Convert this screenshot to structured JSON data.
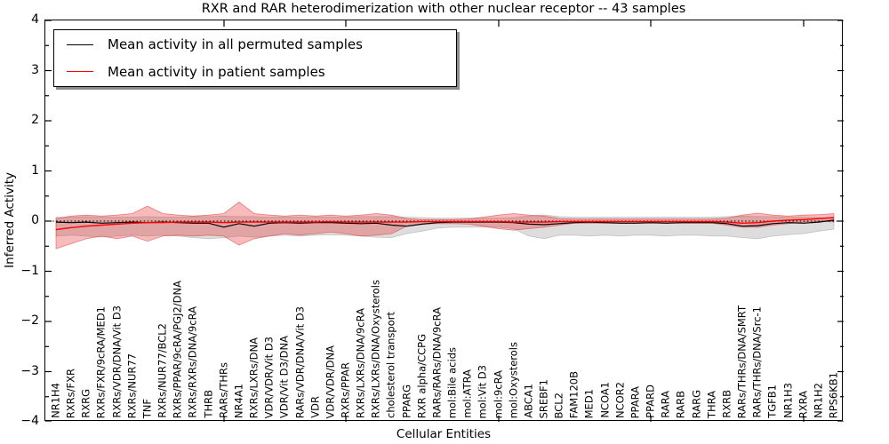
{
  "title": "RXR and RAR heterodimerization with other nuclear receptor -- 43 samples",
  "axes": {
    "ylabel": "Inferred Activity",
    "xlabel": "Cellular Entities",
    "yticks": [
      "4",
      "3",
      "2",
      "1",
      "0",
      "−1",
      "−2",
      "−3",
      "−4"
    ]
  },
  "legend": {
    "items": [
      {
        "label": "Mean activity in all permuted samples",
        "color": "#000000"
      },
      {
        "label": "Mean activity in patient samples",
        "color": "#ff0000"
      }
    ]
  },
  "chart_data": {
    "type": "line",
    "title": "RXR and RAR heterodimerization with other nuclear receptor -- 43 samples",
    "xlabel": "Cellular Entities",
    "ylabel": "Inferred Activity",
    "ylim": [
      -4,
      4
    ],
    "grid": false,
    "legend_position": "upper left",
    "zero_reference_line": {
      "value": 0,
      "style": "dotted",
      "color": "#000000"
    },
    "categories": [
      "NR1H4",
      "RXRs/FXR",
      "RXRG",
      "RXRs/FXR/9cRA/MED1",
      "RXRs/VDR/DNA/Vit D3",
      "RXRs/NUR77",
      "TNF",
      "RXRs/NUR77/BCL2",
      "RXRs/PPAR/9cRA/PGJ2/DNA",
      "RXRs/RXRs/DNA/9cRA",
      "THRB",
      "RARs/THRs",
      "NR4A1",
      "RXRs/LXRs/DNA",
      "VDR/VDR/Vit D3",
      "VDR/Vit D3/DNA",
      "RARs/VDR/DNA/Vit D3",
      "VDR",
      "VDR/VDR/DNA",
      "RXRs/PPAR",
      "RXRs/LXRs/DNA/9cRA",
      "RXRs/LXRs/DNA/Oxysterols",
      "cholesterol transport",
      "PPARG",
      "RXR alpha/CCPG",
      "RARs/RARs/DNA/9cRA",
      "mol:Bile acids",
      "mol:ATRA",
      "mol:Vit D3",
      "mol:9cRA",
      "mol:Oxysterols",
      "ABCA1",
      "SREBF1",
      "BCL2",
      "FAM120B",
      "MED1",
      "NCOA1",
      "NCOR2",
      "PPARA",
      "PPARD",
      "RARA",
      "RARB",
      "RARG",
      "THRA",
      "RXRB",
      "RARs/THRs/DNA/SMRT",
      "RARs/THRs/DNA/Src-1",
      "TGFB1",
      "NR1H3",
      "RXRA",
      "NR1H2",
      "RPS6KB1"
    ],
    "series": [
      {
        "name": "Mean activity in all permuted samples",
        "color": "#000000",
        "style": "solid",
        "values": [
          -0.02,
          -0.03,
          -0.02,
          -0.04,
          -0.03,
          -0.02,
          -0.03,
          -0.02,
          -0.03,
          -0.04,
          -0.04,
          -0.12,
          -0.05,
          -0.1,
          -0.04,
          -0.03,
          -0.04,
          -0.03,
          -0.03,
          -0.04,
          -0.05,
          -0.04,
          -0.08,
          -0.1,
          -0.06,
          -0.03,
          -0.02,
          -0.02,
          -0.02,
          -0.02,
          -0.03,
          -0.06,
          -0.07,
          -0.05,
          -0.03,
          -0.02,
          -0.03,
          -0.04,
          -0.04,
          -0.03,
          -0.04,
          -0.03,
          -0.03,
          -0.03,
          -0.05,
          -0.1,
          -0.09,
          -0.05,
          -0.03,
          -0.04,
          -0.02,
          0.02
        ]
      },
      {
        "name": "Mean activity in patient samples",
        "color": "#ff0000",
        "style": "solid",
        "values": [
          -0.17,
          -0.13,
          -0.1,
          -0.08,
          -0.06,
          -0.04,
          -0.03,
          -0.03,
          -0.02,
          -0.02,
          -0.02,
          -0.03,
          -0.02,
          -0.02,
          -0.02,
          -0.02,
          -0.02,
          -0.02,
          -0.01,
          -0.02,
          -0.02,
          -0.02,
          -0.02,
          -0.02,
          -0.01,
          -0.01,
          -0.01,
          -0.01,
          -0.01,
          -0.01,
          -0.02,
          -0.02,
          -0.02,
          -0.01,
          -0.01,
          -0.01,
          -0.01,
          -0.01,
          -0.01,
          -0.01,
          -0.01,
          -0.01,
          -0.01,
          -0.01,
          -0.02,
          -0.04,
          -0.03,
          0.0,
          0.02,
          0.03,
          0.05,
          0.07
        ]
      }
    ],
    "bands": [
      {
        "name": "permuted-samples-range",
        "fill": "rgba(130,130,130,0.27)",
        "edge": "rgba(130,130,130,0.4)",
        "upper": [
          0.08,
          0.08,
          0.09,
          0.08,
          0.08,
          0.08,
          0.09,
          0.08,
          0.08,
          0.09,
          0.09,
          0.1,
          0.09,
          0.09,
          0.08,
          0.08,
          0.08,
          0.08,
          0.08,
          0.08,
          0.09,
          0.09,
          0.09,
          0.08,
          0.07,
          0.06,
          0.06,
          0.06,
          0.06,
          0.06,
          0.07,
          0.1,
          0.12,
          0.09,
          0.08,
          0.08,
          0.08,
          0.08,
          0.08,
          0.08,
          0.08,
          0.08,
          0.08,
          0.08,
          0.09,
          0.1,
          0.09,
          0.09,
          0.08,
          0.08,
          0.07,
          0.06
        ],
        "lower": [
          -0.3,
          -0.28,
          -0.3,
          -0.32,
          -0.3,
          -0.28,
          -0.3,
          -0.28,
          -0.3,
          -0.33,
          -0.35,
          -0.33,
          -0.3,
          -0.32,
          -0.3,
          -0.28,
          -0.3,
          -0.28,
          -0.27,
          -0.28,
          -0.3,
          -0.32,
          -0.33,
          -0.25,
          -0.2,
          -0.14,
          -0.12,
          -0.12,
          -0.12,
          -0.12,
          -0.15,
          -0.3,
          -0.35,
          -0.28,
          -0.28,
          -0.3,
          -0.28,
          -0.3,
          -0.28,
          -0.28,
          -0.3,
          -0.28,
          -0.28,
          -0.3,
          -0.3,
          -0.33,
          -0.35,
          -0.3,
          -0.27,
          -0.25,
          -0.2,
          -0.16
        ]
      },
      {
        "name": "patient-samples-range",
        "fill": "rgba(235,50,50,0.33)",
        "edge": "rgba(220,30,30,0.5)",
        "upper": [
          0.05,
          0.1,
          0.12,
          0.1,
          0.12,
          0.15,
          0.3,
          0.15,
          0.12,
          0.1,
          0.12,
          0.15,
          0.38,
          0.15,
          0.12,
          0.1,
          0.12,
          0.1,
          0.12,
          0.1,
          0.12,
          0.15,
          0.12,
          0.05,
          0.03,
          0.03,
          0.03,
          0.04,
          0.08,
          0.12,
          0.15,
          0.12,
          0.1,
          0.05,
          0.04,
          0.04,
          0.04,
          0.04,
          0.04,
          0.04,
          0.04,
          0.04,
          0.04,
          0.04,
          0.06,
          0.12,
          0.16,
          0.12,
          0.1,
          0.12,
          0.13,
          0.15
        ],
        "lower": [
          -0.55,
          -0.45,
          -0.35,
          -0.3,
          -0.35,
          -0.3,
          -0.4,
          -0.3,
          -0.28,
          -0.3,
          -0.28,
          -0.3,
          -0.48,
          -0.35,
          -0.3,
          -0.25,
          -0.28,
          -0.25,
          -0.22,
          -0.25,
          -0.3,
          -0.28,
          -0.25,
          -0.1,
          -0.06,
          -0.05,
          -0.05,
          -0.06,
          -0.1,
          -0.15,
          -0.18,
          -0.15,
          -0.12,
          -0.08,
          -0.04,
          -0.04,
          -0.04,
          -0.04,
          -0.04,
          -0.04,
          -0.04,
          -0.04,
          -0.04,
          -0.04,
          -0.08,
          -0.12,
          -0.12,
          -0.08,
          -0.05,
          -0.02,
          0.0,
          -0.02
        ]
      }
    ]
  }
}
